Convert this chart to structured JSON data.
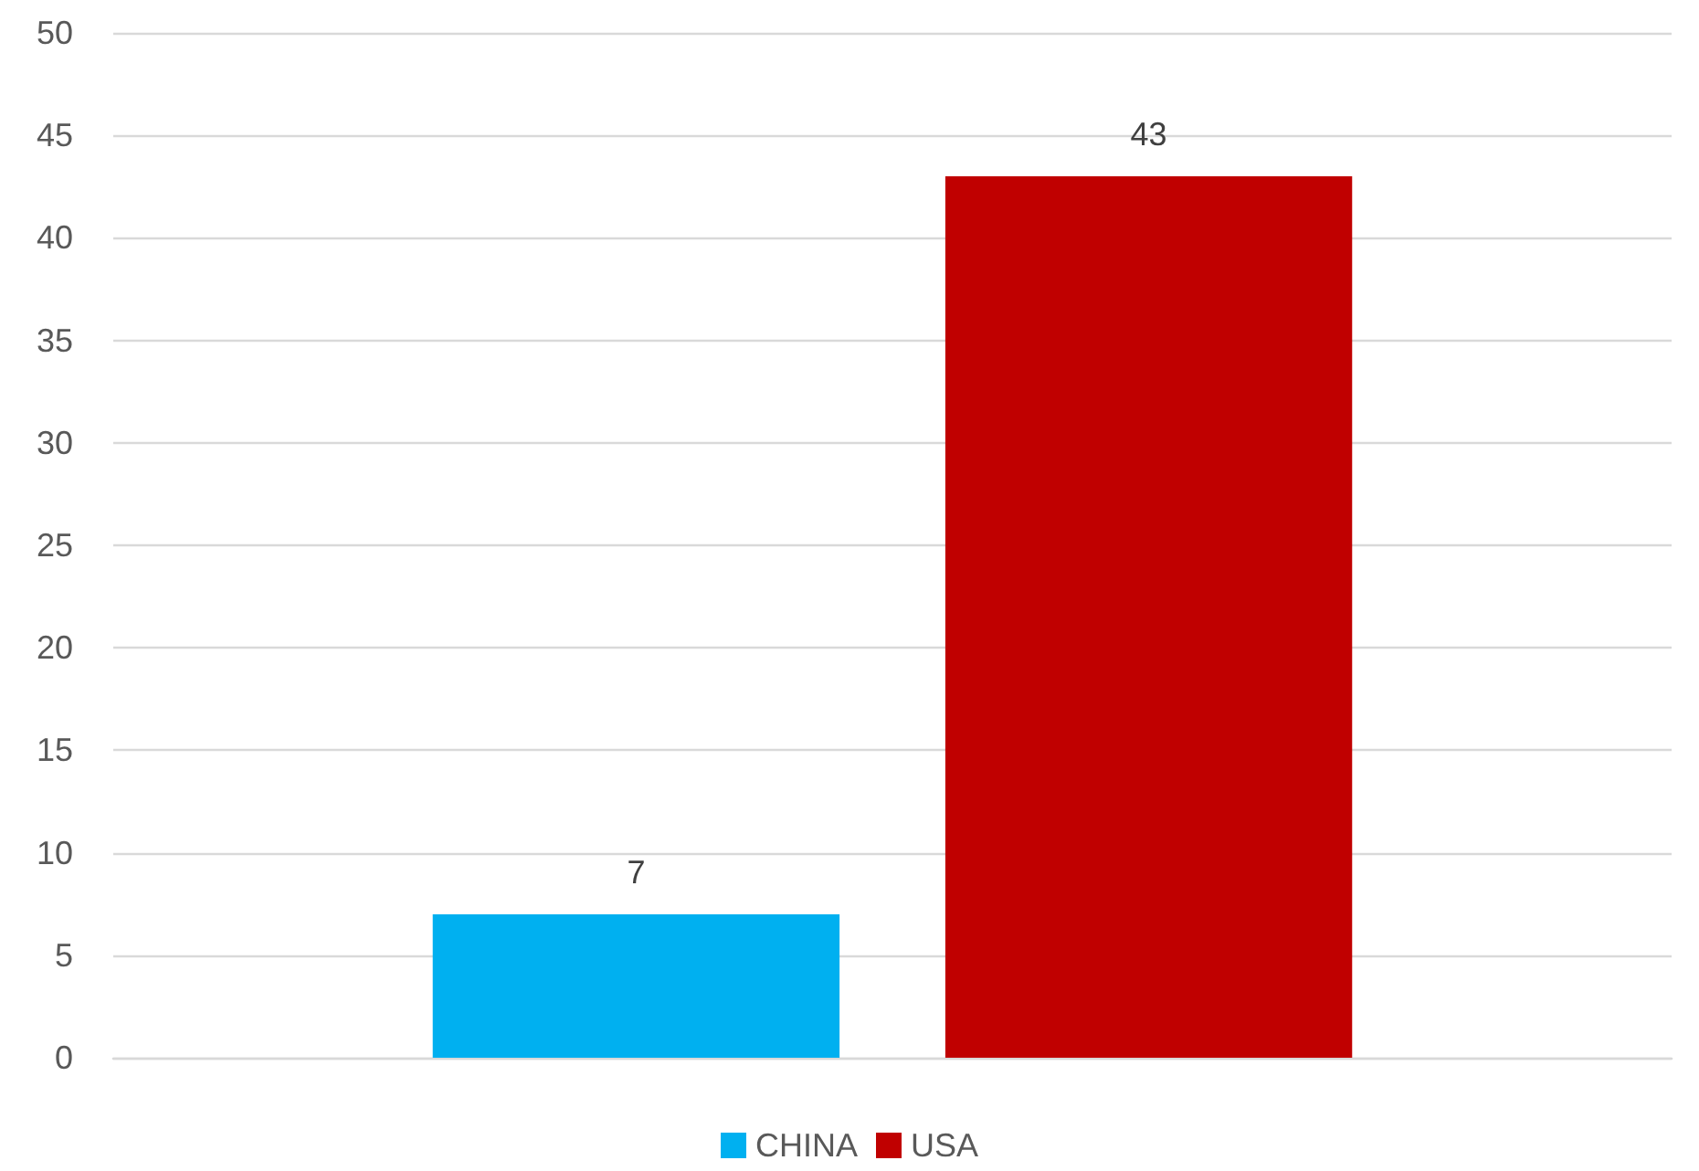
{
  "chart_data": {
    "type": "bar",
    "categories": [
      null
    ],
    "series": [
      {
        "name": "CHINA",
        "color": "#00b0f0",
        "values": [
          7
        ]
      },
      {
        "name": "USA",
        "color": "#c00000",
        "values": [
          43
        ]
      }
    ],
    "ylim": [
      0,
      50
    ],
    "yticks": [
      0,
      5,
      10,
      15,
      20,
      25,
      30,
      35,
      40,
      45,
      50
    ],
    "grid": "y",
    "legend": "bottom",
    "data_labels": true
  }
}
